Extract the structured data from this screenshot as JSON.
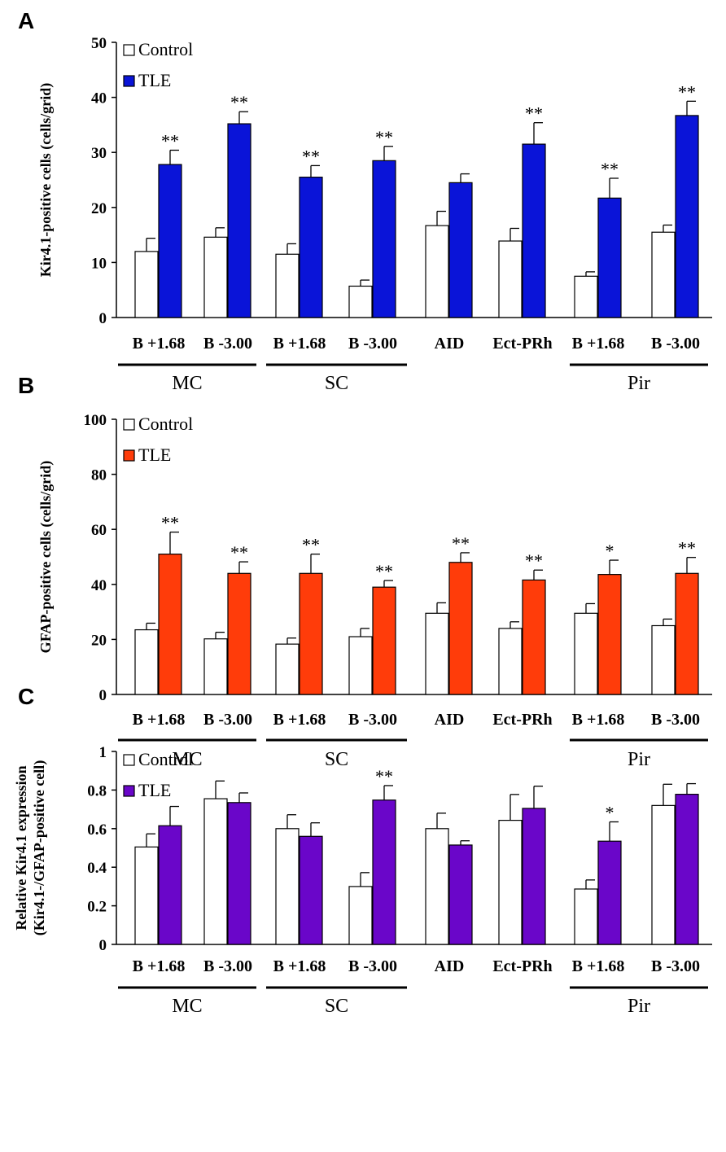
{
  "chart_data": [
    {
      "panel": "A",
      "type": "bar",
      "ylabel": "Kir4.1-positive cells (cells/grid)",
      "ylim": [
        0,
        50
      ],
      "yticks": [
        "0",
        "10",
        "20",
        "30",
        "40",
        "50"
      ],
      "categories": [
        "B +1.68",
        "B -3.00",
        "B +1.68",
        "B -3.00",
        "AID",
        "Ect-PRh",
        "B +1.68",
        "B -3.00"
      ],
      "groups": [
        {
          "label": "MC",
          "span": [
            0,
            1
          ]
        },
        {
          "label": "SC",
          "span": [
            2,
            3
          ]
        },
        {
          "label": "Pir",
          "span": [
            6,
            7
          ]
        }
      ],
      "series": [
        {
          "name": "Control",
          "color": "#ffffff",
          "values": [
            12,
            14.6,
            11.5,
            5.7,
            16.7,
            13.9,
            7.5,
            15.5
          ],
          "errors": [
            2.4,
            1.7,
            1.9,
            1.1,
            2.6,
            2.3,
            0.8,
            1.3
          ]
        },
        {
          "name": "TLE",
          "color": "#0a14d8",
          "values": [
            27.8,
            35.2,
            25.5,
            28.5,
            24.5,
            31.5,
            21.7,
            36.7
          ],
          "errors": [
            2.6,
            2.2,
            2.1,
            2.6,
            1.6,
            3.9,
            3.6,
            2.6
          ]
        }
      ],
      "significance": [
        "**",
        "**",
        "**",
        "**",
        "",
        "**",
        "**",
        "**"
      ]
    },
    {
      "panel": "B",
      "type": "bar",
      "ylabel": "GFAP-positive cells (cells/grid)",
      "ylim": [
        0,
        100
      ],
      "yticks": [
        "0",
        "20",
        "40",
        "60",
        "80",
        "100"
      ],
      "categories": [
        "B +1.68",
        "B -3.00",
        "B +1.68",
        "B -3.00",
        "AID",
        "Ect-PRh",
        "B +1.68",
        "B -3.00"
      ],
      "groups": [
        {
          "label": "MC",
          "span": [
            0,
            1
          ]
        },
        {
          "label": "SC",
          "span": [
            2,
            3
          ]
        },
        {
          "label": "Pir",
          "span": [
            6,
            7
          ]
        }
      ],
      "series": [
        {
          "name": "Control",
          "color": "#ffffff",
          "values": [
            23.5,
            20.2,
            18.3,
            21,
            29.5,
            24,
            29.5,
            25
          ],
          "errors": [
            2.4,
            2.4,
            2.2,
            3,
            3.8,
            2.4,
            3.5,
            2.4
          ]
        },
        {
          "name": "TLE",
          "color": "#ff3c0a",
          "values": [
            51,
            44,
            44,
            39,
            48,
            41.6,
            43.6,
            44
          ],
          "errors": [
            8,
            4.2,
            7,
            2.4,
            3.5,
            3.6,
            5.2,
            5.8
          ]
        }
      ],
      "significance": [
        "**",
        "**",
        "**",
        "**",
        "**",
        "**",
        "*",
        "**"
      ]
    },
    {
      "panel": "C",
      "type": "bar",
      "ylabel_line1": "Relative Kir4.1 expression",
      "ylabel_line2": "(Kir4.1-/GFAP-positive cell)",
      "ylim": [
        0,
        1
      ],
      "yticks": [
        "0",
        "0.2",
        "0.4",
        "0.6",
        "0.8",
        "1"
      ],
      "categories": [
        "B +1.68",
        "B -3.00",
        "B +1.68",
        "B -3.00",
        "AID",
        "Ect-PRh",
        "B +1.68",
        "B -3.00"
      ],
      "groups": [
        {
          "label": "MC",
          "span": [
            0,
            1
          ]
        },
        {
          "label": "SC",
          "span": [
            2,
            3
          ]
        },
        {
          "label": "Pir",
          "span": [
            6,
            7
          ]
        }
      ],
      "series": [
        {
          "name": "Control",
          "color": "#ffffff",
          "values": [
            0.505,
            0.755,
            0.6,
            0.3,
            0.6,
            0.643,
            0.287,
            0.72
          ],
          "errors": [
            0.068,
            0.092,
            0.072,
            0.072,
            0.08,
            0.134,
            0.047,
            0.11
          ]
        },
        {
          "name": "TLE",
          "color": "#6a06c9",
          "values": [
            0.615,
            0.735,
            0.56,
            0.748,
            0.515,
            0.705,
            0.535,
            0.778
          ],
          "errors": [
            0.1,
            0.05,
            0.07,
            0.075,
            0.022,
            0.115,
            0.1,
            0.055
          ]
        }
      ],
      "significance": [
        "",
        "",
        "",
        "**",
        "",
        "",
        "*",
        ""
      ]
    }
  ]
}
